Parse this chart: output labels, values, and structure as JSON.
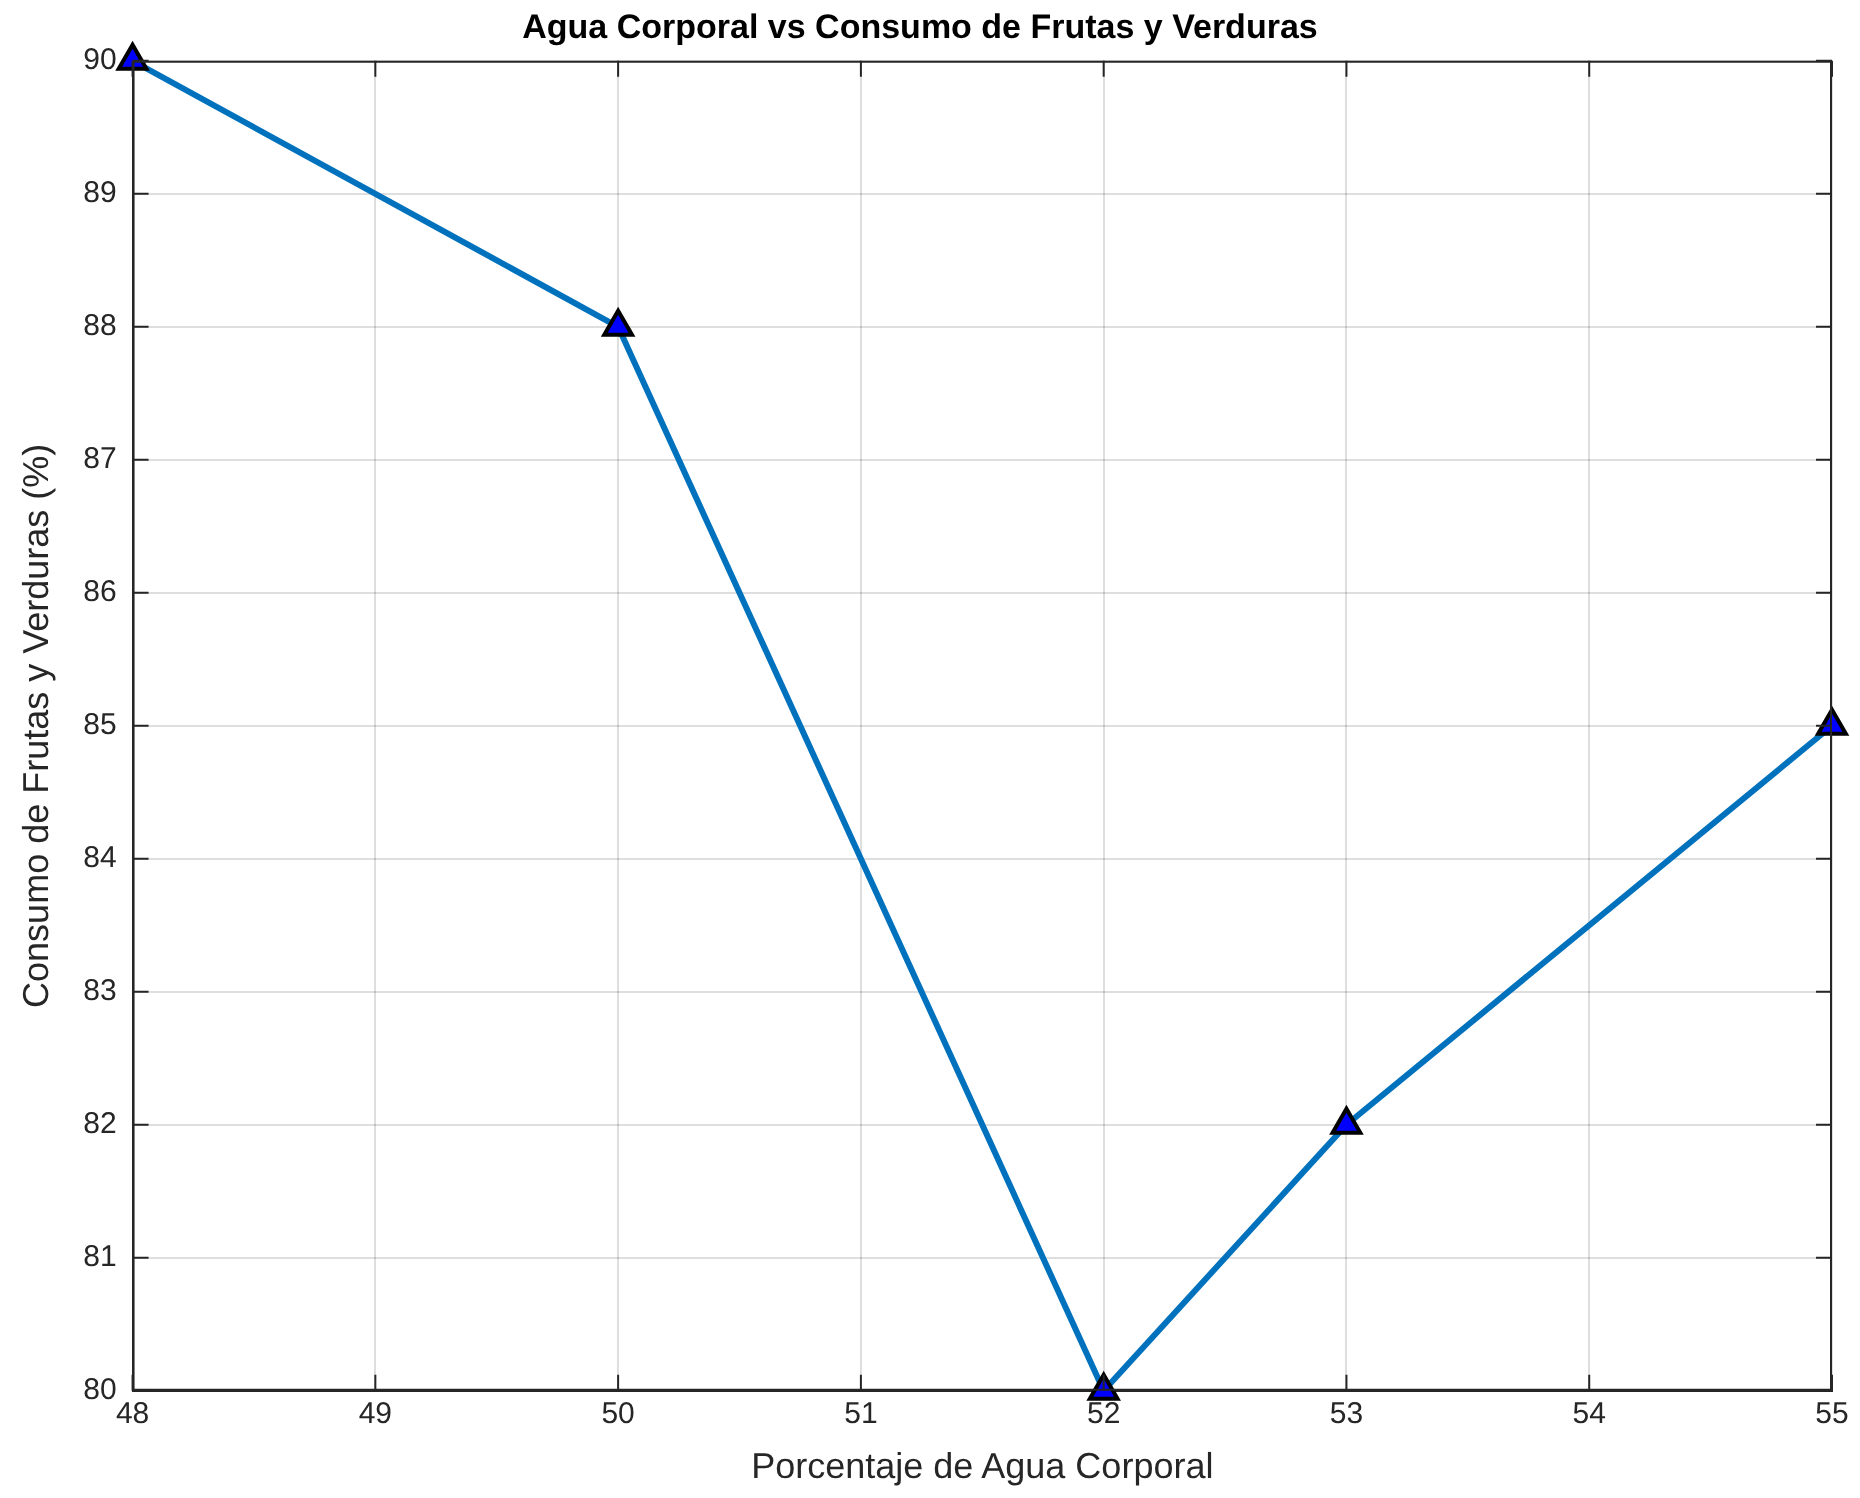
{
  "chart_data": {
    "type": "line",
    "title": "Agua Corporal vs Consumo de Frutas y Verduras",
    "xlabel": "Porcentaje de Agua Corporal",
    "ylabel": "Consumo de Frutas y Verduras (%)",
    "x": [
      48,
      50,
      52,
      53,
      55
    ],
    "series": [
      {
        "color": "#0072bd",
        "values": [
          90,
          88,
          80,
          82,
          85
        ]
      }
    ],
    "xlim": [
      48,
      55
    ],
    "xticks": [
      48,
      49,
      50,
      51,
      52,
      53,
      54,
      55
    ],
    "ylim": [
      80,
      90
    ],
    "yticks": [
      80,
      81,
      82,
      83,
      84,
      85,
      86,
      87,
      88,
      89,
      90
    ],
    "grid": true,
    "marker": "triangle",
    "line_style": "solid"
  }
}
